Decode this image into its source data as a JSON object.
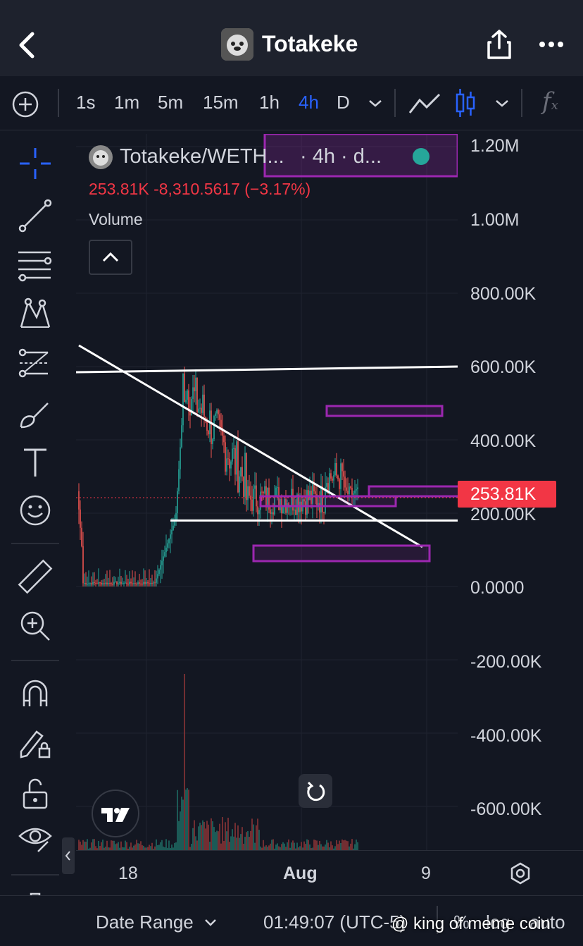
{
  "header": {
    "title": "Totakeke",
    "back_icon": "chevron-left-icon",
    "share_icon": "share-icon",
    "more_icon": "more-icon"
  },
  "toolbar": {
    "timeframes": [
      "1s",
      "1m",
      "5m",
      "15m",
      "1h",
      "4h",
      "D"
    ],
    "active": "4h",
    "accent": "#2962ff"
  },
  "legend": {
    "pair": "Totakeke/WETH...",
    "meta": "· 4h · d...",
    "price": "253.81K",
    "change": "-8,310.5617 (−3.17%)",
    "volume": "Volume",
    "change_color": "#f23645"
  },
  "price_axis": {
    "labels": [
      "1.20M",
      "1.00M",
      "800.00K",
      "600.00K",
      "400.00K",
      "200.00K",
      "0.0000",
      "-200.00K",
      "-400.00K",
      "-600.00K"
    ],
    "current": "253.81K",
    "current_bg": "#f23645"
  },
  "time_axis": {
    "labels": [
      "18",
      "Aug",
      "9"
    ]
  },
  "bottom": {
    "date_range": "Date Range",
    "time": "01:49:07 (UTC-5)",
    "percent": "%",
    "log": "log",
    "auto": "auto",
    "watermark": "@ king of meme coin"
  },
  "chart_data": {
    "type": "candlestick",
    "price_unit": "",
    "ylim": [
      -700000,
      1250000
    ],
    "current_price": 253810,
    "volume_panel": "Volume",
    "drawings": {
      "horizontal_lines": [
        600000,
        180000
      ],
      "trend_line": [
        [
          0,
          650000
        ],
        [
          1,
          100000
        ]
      ]
    },
    "rectangles": [
      [
        480000,
        495000
      ],
      [
        230000,
        265000
      ],
      [
        90000,
        120000
      ],
      [
        1180000,
        1220000
      ]
    ]
  }
}
